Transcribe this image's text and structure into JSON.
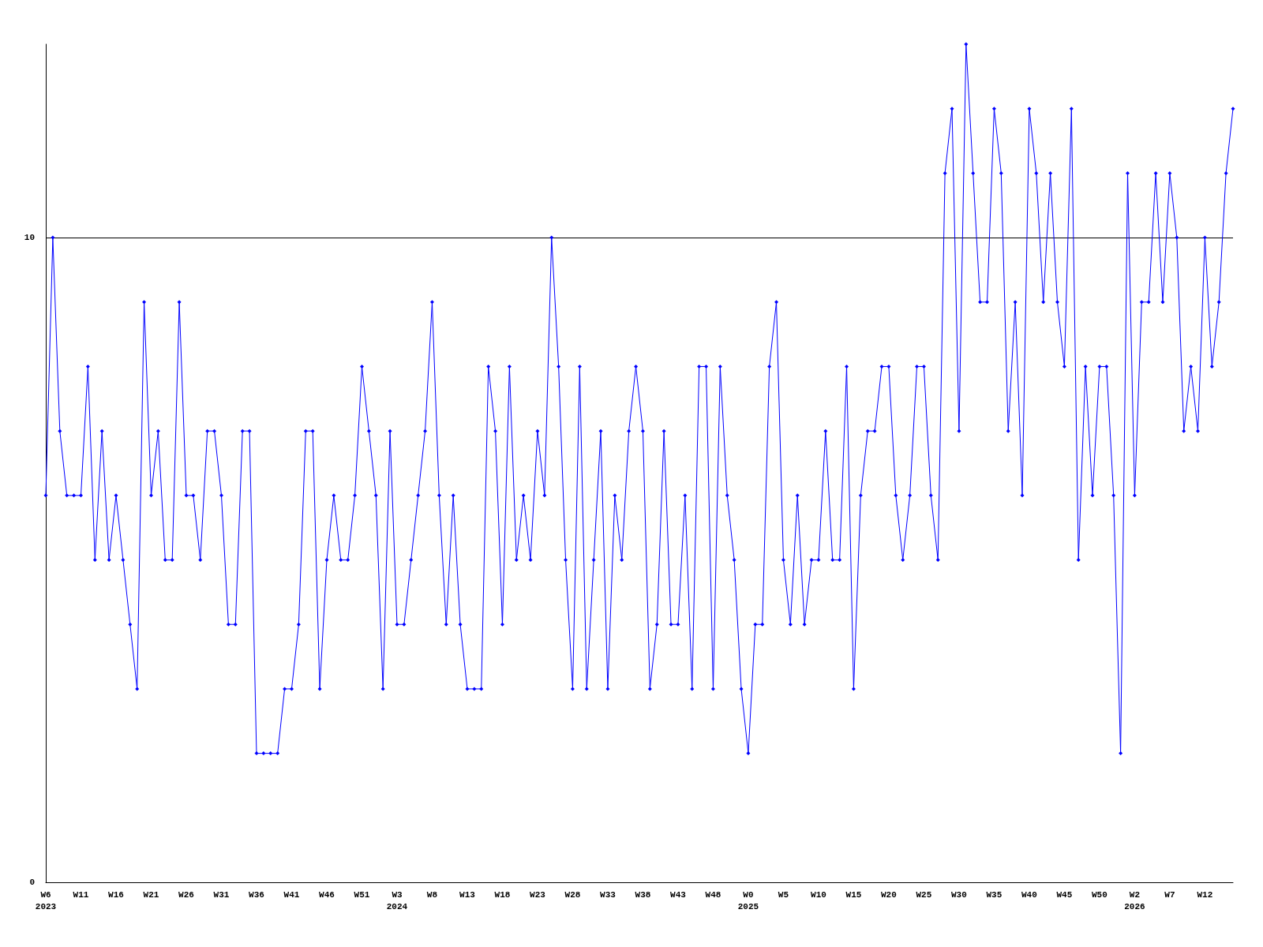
{
  "chart_data": {
    "type": "line",
    "categories": [
      "W6\n2023",
      null,
      null,
      null,
      null,
      "W11",
      null,
      null,
      null,
      null,
      "W16",
      null,
      null,
      null,
      null,
      "W21",
      null,
      null,
      null,
      null,
      "W26",
      null,
      null,
      null,
      null,
      "W31",
      null,
      null,
      null,
      null,
      "W36",
      null,
      null,
      null,
      null,
      "W41",
      null,
      null,
      null,
      null,
      "W46",
      null,
      null,
      null,
      null,
      "W51",
      null,
      null,
      null,
      null,
      "W3\n2024",
      null,
      null,
      null,
      null,
      "W8",
      null,
      null,
      null,
      null,
      "W13",
      null,
      null,
      null,
      null,
      "W18",
      null,
      null,
      null,
      null,
      "W23",
      null,
      null,
      null,
      null,
      "W28",
      null,
      null,
      null,
      null,
      "W33",
      null,
      null,
      null,
      null,
      "W38",
      null,
      null,
      null,
      null,
      "W43",
      null,
      null,
      null,
      null,
      "W48",
      null,
      null,
      null,
      null,
      "W0\n2025",
      null,
      null,
      null,
      null,
      "W5",
      null,
      null,
      null,
      null,
      "W10",
      null,
      null,
      null,
      null,
      "W15",
      null,
      null,
      null,
      null,
      "W20",
      null,
      null,
      null,
      null,
      "W25",
      null,
      null,
      null,
      null,
      "W30",
      null,
      null,
      null,
      null,
      "W35",
      null,
      null,
      null,
      null,
      "W40",
      null,
      null,
      null,
      null,
      "W45",
      null,
      null,
      null,
      null,
      "W50",
      null,
      null,
      null,
      null,
      "W2\n2026",
      null,
      null,
      null,
      null,
      "W7",
      null,
      null,
      null,
      null,
      "W12",
      null,
      null,
      null,
      null
    ],
    "series": [
      {
        "color": "#0000ff",
        "values": [
          6,
          10,
          7,
          6,
          6,
          6,
          8,
          5,
          7,
          5,
          6,
          5,
          4,
          3,
          9,
          6,
          7,
          5,
          5,
          9,
          6,
          6,
          5,
          7,
          7,
          6,
          4,
          4,
          7,
          7,
          2,
          2,
          2,
          2,
          3,
          3,
          4,
          7,
          7,
          3,
          5,
          6,
          5,
          5,
          6,
          8,
          7,
          6,
          3,
          7,
          4,
          4,
          5,
          6,
          7,
          9,
          6,
          4,
          6,
          4,
          3,
          3,
          3,
          8,
          7,
          4,
          8,
          5,
          6,
          5,
          7,
          6,
          10,
          8,
          5,
          3,
          8,
          3,
          5,
          7,
          3,
          6,
          5,
          7,
          8,
          7,
          3,
          4,
          7,
          4,
          4,
          6,
          3,
          8,
          8,
          3,
          8,
          6,
          5,
          3,
          2,
          4,
          4,
          8,
          9,
          5,
          4,
          6,
          4,
          5,
          5,
          7,
          5,
          5,
          8,
          3,
          6,
          7,
          7,
          8,
          8,
          6,
          5,
          6,
          8,
          8,
          6,
          5,
          11,
          12,
          7,
          13,
          11,
          9,
          9,
          12,
          11,
          7,
          9,
          6,
          12,
          11,
          9,
          11,
          9,
          8,
          12,
          5,
          8,
          6,
          8,
          8,
          6,
          2,
          11,
          6,
          9,
          9,
          11,
          9,
          11,
          10,
          7,
          8,
          7,
          10,
          8,
          9,
          11,
          12
        ]
      }
    ],
    "ylim": [
      0,
      13
    ],
    "yticks": [
      0,
      10
    ],
    "grid": "y",
    "marker": "diamond",
    "line_style": "solid"
  }
}
